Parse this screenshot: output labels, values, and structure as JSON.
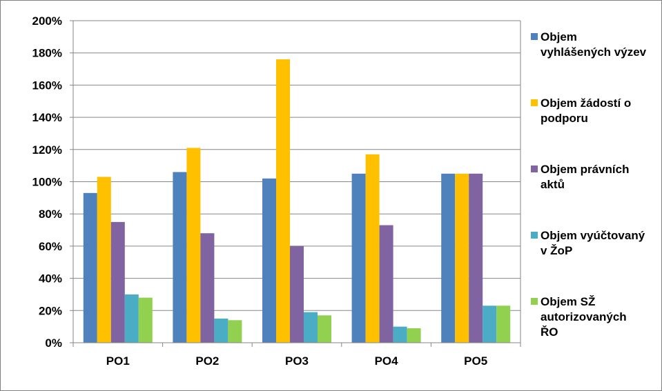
{
  "chart_data": {
    "type": "bar",
    "title": "",
    "xlabel": "",
    "ylabel": "",
    "ylim": [
      0,
      200
    ],
    "y_unit": "%",
    "y_ticks": [
      "0%",
      "20%",
      "40%",
      "60%",
      "80%",
      "100%",
      "120%",
      "140%",
      "160%",
      "180%",
      "200%"
    ],
    "grid": true,
    "legend_position": "right",
    "categories": [
      "PO1",
      "PO2",
      "PO3",
      "PO4",
      "PO5"
    ],
    "series": [
      {
        "name": "Objem vyhlášených výzev",
        "color": "#4f81bd",
        "values": [
          93,
          106,
          102,
          105,
          105
        ]
      },
      {
        "name": "Objem žádostí o podporu",
        "color": "#ffc000",
        "values": [
          103,
          121,
          176,
          117,
          105
        ]
      },
      {
        "name": "Objem právních aktů",
        "color": "#8064a2",
        "values": [
          75,
          68,
          60,
          73,
          105
        ]
      },
      {
        "name": "Objem vyúčtovaný v ŽoP",
        "color": "#4bacc6",
        "values": [
          30,
          15,
          19,
          10,
          23
        ]
      },
      {
        "name": "Objem SŽ autorizovaných ŘO",
        "color": "#92d050",
        "values": [
          28,
          14,
          17,
          9,
          23
        ]
      }
    ]
  }
}
